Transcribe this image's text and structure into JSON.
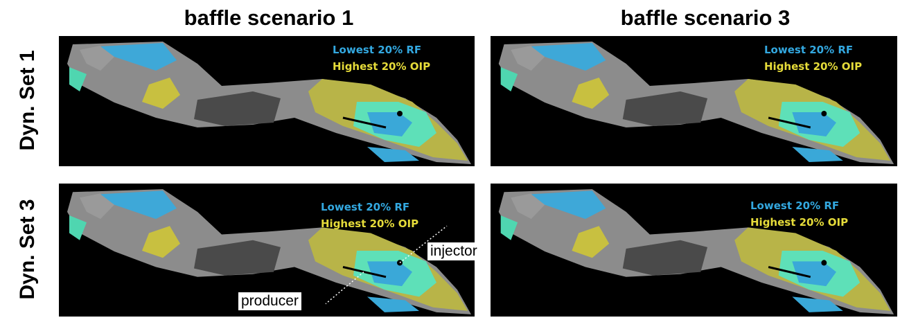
{
  "column_titles": [
    "baffle scenario 1",
    "baffle scenario 3"
  ],
  "row_labels": [
    "Dyn. Set 1",
    "Dyn. Set 3"
  ],
  "panels": [
    {
      "legend": [
        "Lowest 20% RF",
        "Highest 20% OIP"
      ]
    },
    {
      "legend": [
        "Lowest 20% RF",
        "Highest 20% OIP"
      ]
    },
    {
      "legend": [
        "Lowest 20% RF",
        "Highest 20% OIP"
      ]
    },
    {
      "legend": [
        "Lowest 20% RF",
        "Highest 20% OIP"
      ]
    }
  ],
  "annotations": [
    "injector",
    "producer"
  ]
}
